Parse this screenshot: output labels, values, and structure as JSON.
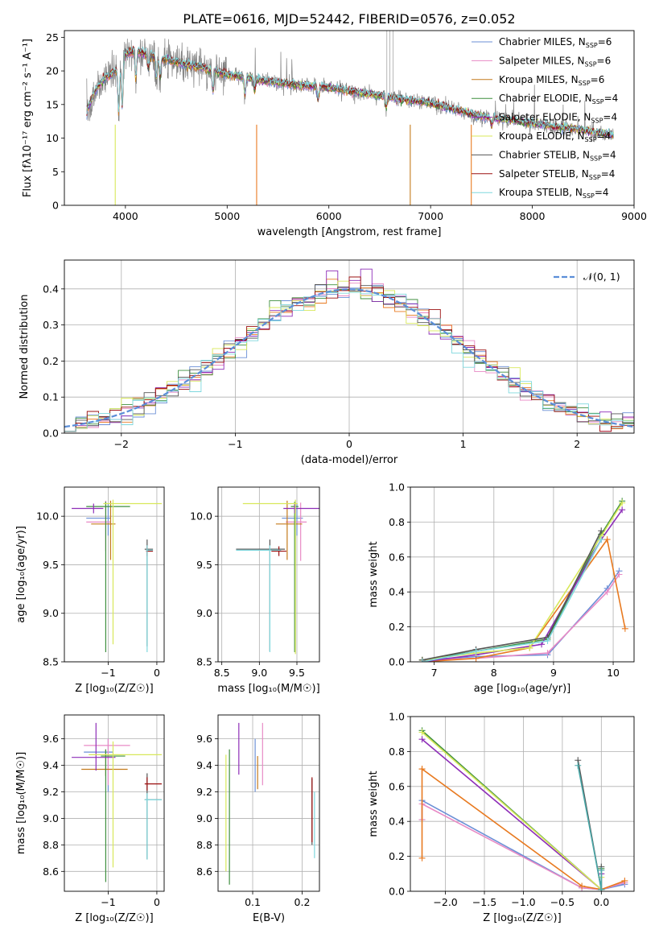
{
  "colors": {
    "Chabrier MILES": "#6b8fd6",
    "Salpeter MILES": "#e88ac5",
    "Kroupa MILES": "#c47a1c",
    "Chabrier ELODIE": "#3f8f3f",
    "Salpeter ELODIE": "#8e2fb8",
    "Kroupa ELODIE": "#d8e85a",
    "Chabrier STELIB": "#555555",
    "Salpeter STELIB": "#9b1010",
    "Kroupa STELIB": "#7fd8de",
    "gauss": "#5b8ed8",
    "orange": "#e87a20",
    "green": "#7bc83a",
    "teal": "#4aa8a8"
  },
  "chart_data": [
    {
      "id": "spectrum",
      "type": "line",
      "title": "PLATE=0616, MJD=52442, FIBERID=0576, z=0.052",
      "xlabel": "wavelength [Angstrom, rest frame]",
      "ylabel": "Flux [fλ10⁻¹⁷ erg cm⁻² s⁻¹ A⁻¹]",
      "xlim": [
        3400,
        9000
      ],
      "ylim": [
        0,
        26
      ],
      "xticks": [
        4000,
        5000,
        6000,
        7000,
        8000,
        9000
      ],
      "yticks": [
        0,
        5,
        10,
        15,
        20,
        25
      ],
      "legend": [
        {
          "name": "Chabrier MILES",
          "n": "6"
        },
        {
          "name": "Salpeter MILES",
          "n": "6"
        },
        {
          "name": "Kroupa MILES",
          "n": "6"
        },
        {
          "name": "Chabrier ELODIE",
          "n": "4"
        },
        {
          "name": "Salpeter ELODIE",
          "n": "4"
        },
        {
          "name": "Kroupa ELODIE",
          "n": "4"
        },
        {
          "name": "Chabrier STELIB",
          "n": "4"
        },
        {
          "name": "Salpeter STELIB",
          "n": "4"
        },
        {
          "name": "Kroupa STELIB",
          "n": "4"
        }
      ],
      "continuum": {
        "x": [
          3620,
          3700,
          3800,
          3900,
          4000,
          4100,
          4300,
          4600,
          5000,
          5500,
          6000,
          6500,
          7000,
          7500,
          8000,
          8500,
          8800
        ],
        "y": [
          14,
          17,
          19,
          20,
          22.5,
          23,
          22,
          21,
          19.5,
          18.2,
          17.5,
          16.3,
          15.2,
          13.2,
          12.2,
          11.2,
          10.4
        ]
      }
    },
    {
      "id": "residuals",
      "type": "step",
      "xlabel": "(data-model)/error",
      "ylabel": "Normed distribution",
      "xlim": [
        -2.5,
        2.5
      ],
      "ylim": [
        0,
        0.48
      ],
      "xticks": [
        -2,
        -1,
        0,
        1,
        2
      ],
      "yticks": [
        0.0,
        0.1,
        0.2,
        0.3,
        0.4
      ],
      "gauss_label": "𝒩(0, 1)"
    },
    {
      "id": "age_vs_Z",
      "type": "errorbar",
      "xlabel": "Z [log₁₀(Z/Z☉)]",
      "ylabel": "age  [log₁₀(age/yr)]",
      "xlim": [
        -1.9,
        0.15
      ],
      "ylim": [
        8.5,
        10.3
      ],
      "xticks": [
        -1,
        0
      ],
      "yticks": [
        8.5,
        9.0,
        9.5,
        10.0
      ],
      "points": [
        {
          "c": "Chabrier MILES",
          "x": -1.0,
          "xerr": [
            0.45,
            0.05
          ],
          "y": 9.98,
          "yerr": [
            0.18,
            0.15
          ]
        },
        {
          "c": "Salpeter MILES",
          "x": -1.05,
          "xerr": [
            0.4,
            0.1
          ],
          "y": 9.94,
          "yerr": [
            0.3,
            0.22
          ]
        },
        {
          "c": "Kroupa MILES",
          "x": -0.95,
          "xerr": [
            0.4,
            0.1
          ],
          "y": 9.92,
          "yerr": [
            0.37,
            0.24
          ]
        },
        {
          "c": "Chabrier ELODIE",
          "x": -1.05,
          "xerr": [
            0.4,
            0.5
          ],
          "y": 10.1,
          "yerr": [
            1.5,
            0.05
          ]
        },
        {
          "c": "Salpeter ELODIE",
          "x": -1.3,
          "xerr": [
            0.45,
            0.2
          ],
          "y": 10.08,
          "yerr": [
            0.05,
            0.05
          ]
        },
        {
          "c": "Kroupa ELODIE",
          "x": -0.9,
          "xerr": [
            0.2,
            1.0
          ],
          "y": 10.13,
          "yerr": [
            1.45,
            0.04
          ]
        },
        {
          "c": "Chabrier STELIB",
          "x": -0.2,
          "xerr": [
            0.05,
            0.12
          ],
          "y": 9.66,
          "yerr": [
            1.0,
            0.1
          ]
        },
        {
          "c": "Salpeter STELIB",
          "x": -0.2,
          "xerr": [
            0.02,
            0.12
          ],
          "y": 9.64,
          "yerr": [
            0.05,
            0.05
          ]
        },
        {
          "c": "Kroupa STELIB",
          "x": -0.2,
          "xerr": [
            0.02,
            0.12
          ],
          "y": 9.65,
          "yerr": [
            1.05,
            0.05
          ]
        }
      ]
    },
    {
      "id": "age_vs_mass",
      "type": "errorbar",
      "xlabel": "mass [log₁₀(M/M☉)]",
      "ylabel": "",
      "xlim": [
        8.45,
        9.8
      ],
      "ylim": [
        8.5,
        10.3
      ],
      "xticks": [
        8.5,
        9.0,
        9.5
      ],
      "yticks": [
        8.5,
        9.0,
        9.5,
        10.0
      ],
      "points": [
        {
          "c": "Chabrier MILES",
          "x": 9.5,
          "xerr": [
            0.2,
            0.08
          ],
          "y": 9.98,
          "yerr": [
            0.18,
            0.15
          ]
        },
        {
          "c": "Salpeter MILES",
          "x": 9.55,
          "xerr": [
            0.2,
            0.08
          ],
          "y": 9.94,
          "yerr": [
            0.4,
            0.2
          ]
        },
        {
          "c": "Kroupa MILES",
          "x": 9.37,
          "xerr": [
            0.15,
            0.2
          ],
          "y": 9.92,
          "yerr": [
            0.37,
            0.24
          ]
        },
        {
          "c": "Chabrier ELODIE",
          "x": 9.47,
          "xerr": [
            0.05,
            0.05
          ],
          "y": 10.1,
          "yerr": [
            1.5,
            0.05
          ]
        },
        {
          "c": "Salpeter ELODIE",
          "x": 9.47,
          "xerr": [
            0.15,
            0.35
          ],
          "y": 10.08,
          "yerr": [
            0.05,
            0.05
          ]
        },
        {
          "c": "Kroupa ELODIE",
          "x": 9.48,
          "xerr": [
            0.7,
            0.03
          ],
          "y": 10.13,
          "yerr": [
            1.55,
            0.04
          ]
        },
        {
          "c": "Chabrier STELIB",
          "x": 9.14,
          "xerr": [
            0.45,
            0.2
          ],
          "y": 9.66,
          "yerr": [
            1.05,
            0.1
          ]
        },
        {
          "c": "Salpeter STELIB",
          "x": 9.26,
          "xerr": [
            0.1,
            0.1
          ],
          "y": 9.64,
          "yerr": [
            0.05,
            0.05
          ]
        },
        {
          "c": "Kroupa STELIB",
          "x": 9.14,
          "xerr": [
            0.45,
            0.15
          ],
          "y": 9.65,
          "yerr": [
            1.05,
            0.05
          ]
        }
      ]
    },
    {
      "id": "weight_vs_age",
      "type": "line",
      "xlabel": "age  [log₁₀(age/yr)]",
      "ylabel": "mass weight",
      "xlim": [
        6.6,
        10.35
      ],
      "ylim": [
        0,
        1.0
      ],
      "xticks": [
        7,
        8,
        9,
        10
      ],
      "yticks": [
        0.0,
        0.2,
        0.4,
        0.6,
        0.8,
        1.0
      ],
      "series": [
        {
          "c": "Chabrier MILES",
          "x": [
            6.8,
            7.7,
            8.9,
            9.9,
            10.1
          ],
          "y": [
            0.01,
            0.03,
            0.04,
            0.42,
            0.52
          ]
        },
        {
          "c": "Salpeter MILES",
          "x": [
            6.8,
            7.7,
            8.9,
            9.9,
            10.1
          ],
          "y": [
            0.01,
            0.02,
            0.05,
            0.4,
            0.5
          ]
        },
        {
          "c": "orange",
          "x": [
            6.8,
            7.7,
            8.6,
            9.9,
            10.2
          ],
          "y": [
            0.0,
            0.02,
            0.08,
            0.7,
            0.19
          ]
        },
        {
          "c": "Chabrier ELODIE",
          "x": [
            6.8,
            7.7,
            8.9,
            9.8,
            10.15
          ],
          "y": [
            0.01,
            0.06,
            0.13,
            0.73,
            0.92
          ]
        },
        {
          "c": "Salpeter ELODIE",
          "x": [
            6.8,
            7.7,
            8.8,
            9.8,
            10.15
          ],
          "y": [
            0.0,
            0.04,
            0.1,
            0.7,
            0.87
          ]
        },
        {
          "c": "Kroupa ELODIE",
          "x": [
            6.8,
            7.7,
            8.6,
            9.8,
            10.15
          ],
          "y": [
            0.01,
            0.05,
            0.08,
            0.72,
            0.91
          ]
        },
        {
          "c": "Chabrier STELIB",
          "x": [
            6.8,
            7.7,
            8.9,
            9.8
          ],
          "y": [
            0.01,
            0.07,
            0.14,
            0.75
          ]
        },
        {
          "c": "Kroupa STELIB",
          "x": [
            6.8,
            7.7,
            8.9,
            9.8
          ],
          "y": [
            0.0,
            0.06,
            0.12,
            0.7
          ]
        }
      ]
    },
    {
      "id": "mass_vs_Z",
      "type": "errorbar",
      "xlabel": "Z [log₁₀(Z/Z☉)]",
      "ylabel": "mass [log₁₀(M/M☉)]",
      "xlim": [
        -1.9,
        0.15
      ],
      "ylim": [
        8.45,
        9.78
      ],
      "xticks": [
        -1,
        0
      ],
      "yticks": [
        8.6,
        8.8,
        9.0,
        9.2,
        9.4,
        9.6
      ],
      "points": [
        {
          "c": "Chabrier MILES",
          "x": -1.0,
          "xerr": [
            0.5,
            0.1
          ],
          "y": 9.5,
          "yerr": [
            0.3,
            0.1
          ]
        },
        {
          "c": "Salpeter MILES",
          "x": -1.0,
          "xerr": [
            0.5,
            0.45
          ],
          "y": 9.55,
          "yerr": [
            0.3,
            0.05
          ]
        },
        {
          "c": "Kroupa MILES",
          "x": -1.05,
          "xerr": [
            0.5,
            0.45
          ],
          "y": 9.37,
          "yerr": [
            0.05,
            0.15
          ]
        },
        {
          "c": "Chabrier ELODIE",
          "x": -1.05,
          "xerr": [
            0.1,
            0.4
          ],
          "y": 9.47,
          "yerr": [
            0.95,
            0.05
          ]
        },
        {
          "c": "Salpeter ELODIE",
          "x": -1.25,
          "xerr": [
            0.5,
            0.4
          ],
          "y": 9.46,
          "yerr": [
            0.1,
            0.26
          ]
        },
        {
          "c": "Kroupa ELODIE",
          "x": -0.9,
          "xerr": [
            0.5,
            1.0
          ],
          "y": 9.48,
          "yerr": [
            0.85,
            0.1
          ]
        },
        {
          "c": "Chabrier STELIB",
          "x": -0.2,
          "xerr": [
            0.05,
            0.3
          ],
          "y": 9.14,
          "yerr": [
            0.45,
            0.2
          ]
        },
        {
          "c": "Salpeter STELIB",
          "x": -0.2,
          "xerr": [
            0.05,
            0.3
          ],
          "y": 9.26,
          "yerr": [
            0.05,
            0.05
          ]
        },
        {
          "c": "Kroupa STELIB",
          "x": -0.2,
          "xerr": [
            0.05,
            0.3
          ],
          "y": 9.14,
          "yerr": [
            0.45,
            0.05
          ]
        }
      ]
    },
    {
      "id": "mass_vs_ebv",
      "type": "errorbar",
      "xlabel": "E(B-V)",
      "ylabel": "",
      "xlim": [
        0.03,
        0.235
      ],
      "ylim": [
        8.45,
        9.78
      ],
      "xticks": [
        0.1,
        0.2
      ],
      "yticks": [
        8.6,
        8.8,
        9.0,
        9.2,
        9.4,
        9.6
      ],
      "points": [
        {
          "c": "Chabrier MILES",
          "x": 0.105,
          "y": 9.5,
          "yerr": [
            0.3,
            0.1
          ]
        },
        {
          "c": "Salpeter MILES",
          "x": 0.12,
          "y": 9.55,
          "yerr": [
            0.3,
            0.17
          ]
        },
        {
          "c": "Kroupa MILES",
          "x": 0.11,
          "y": 9.37,
          "yerr": [
            0.15,
            0.1
          ]
        },
        {
          "c": "Chabrier ELODIE",
          "x": 0.053,
          "y": 9.0,
          "yerr": [
            0.5,
            0.52
          ]
        },
        {
          "c": "Salpeter ELODIE",
          "x": 0.072,
          "y": 9.5,
          "yerr": [
            0.17,
            0.22
          ]
        },
        {
          "c": "Kroupa ELODIE",
          "x": 0.046,
          "y": 9.0,
          "yerr": [
            0.4,
            0.48
          ]
        },
        {
          "c": "Chabrier STELIB",
          "x": 0.22,
          "y": 9.0,
          "yerr": [
            0.2,
            0.3
          ]
        },
        {
          "c": "Salpeter STELIB",
          "x": 0.22,
          "y": 9.05,
          "yerr": [
            0.23,
            0.26
          ]
        },
        {
          "c": "Kroupa STELIB",
          "x": 0.225,
          "y": 9.0,
          "yerr": [
            0.3,
            0.2
          ]
        }
      ]
    },
    {
      "id": "weight_vs_Z",
      "type": "line",
      "xlabel": "Z [log₁₀(Z/Z☉)]",
      "ylabel": "mass weight",
      "xlim": [
        -2.45,
        0.42
      ],
      "ylim": [
        0,
        1.0
      ],
      "xticks": [
        -2.0,
        -1.5,
        -1.0,
        -0.5,
        0.0
      ],
      "yticks": [
        0.0,
        0.2,
        0.4,
        0.6,
        0.8,
        1.0
      ],
      "series": [
        {
          "c": "Chabrier MILES",
          "x": [
            -2.3,
            -2.3,
            -0.25,
            0.0,
            0.3
          ],
          "y": [
            0.41,
            0.52,
            0.02,
            0.01,
            0.04
          ]
        },
        {
          "c": "Salpeter MILES",
          "x": [
            -2.3,
            -2.3,
            -0.25,
            0.0,
            0.3
          ],
          "y": [
            0.41,
            0.5,
            0.02,
            0.01,
            0.05
          ]
        },
        {
          "c": "orange",
          "x": [
            -2.3,
            -2.3,
            -2.3,
            -0.25,
            0.0,
            0.3
          ],
          "y": [
            0.19,
            0.7,
            0.7,
            0.03,
            0.01,
            0.06
          ]
        },
        {
          "c": "Chabrier ELODIE",
          "x": [
            -2.3,
            0.0,
            -0.0
          ],
          "y": [
            0.92,
            0.01,
            0.13
          ]
        },
        {
          "c": "Salpeter ELODIE",
          "x": [
            -2.3,
            0.0,
            0.0
          ],
          "y": [
            0.87,
            0.01,
            0.1
          ]
        },
        {
          "c": "Kroupa ELODIE",
          "x": [
            -2.3,
            0.0,
            0.0
          ],
          "y": [
            0.91,
            0.01,
            0.08
          ]
        },
        {
          "c": "Chabrier STELIB",
          "x": [
            -0.3,
            0.0,
            0.0
          ],
          "y": [
            0.75,
            0.01,
            0.14
          ]
        },
        {
          "c": "teal",
          "x": [
            -0.3,
            0.0,
            0.0
          ],
          "y": [
            0.72,
            0.01,
            0.12
          ]
        }
      ]
    }
  ]
}
